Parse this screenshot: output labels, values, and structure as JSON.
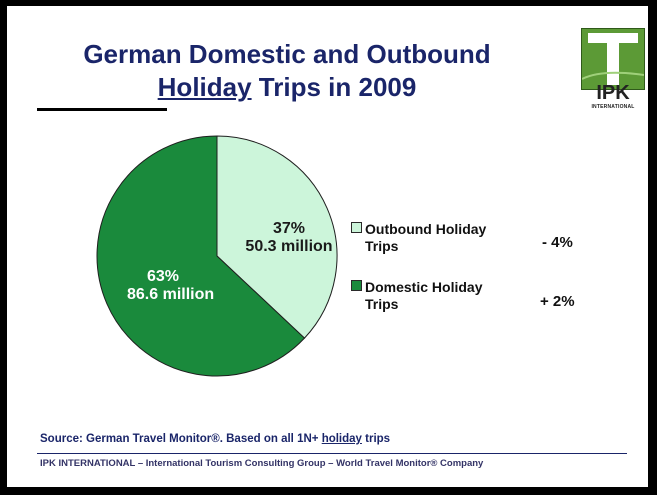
{
  "title": {
    "line1": "German Domestic and Outbound",
    "line2_underlined": "Holiday",
    "line2_rest": " Trips in 2009"
  },
  "logo": {
    "text": "IPK",
    "subtext": "INTERNATIONAL"
  },
  "chart_data": {
    "type": "pie",
    "slices": [
      {
        "name": "Outbound Holiday Trips",
        "percent": 37,
        "value_label": "50.3 million",
        "change": "- 4%",
        "color": "#ccf5da"
      },
      {
        "name": "Domestic Holiday Trips",
        "percent": 63,
        "value_label": "86.6 million",
        "change": "+ 2%",
        "color": "#1a8a3c"
      }
    ],
    "percent_labels": [
      "37%",
      "63%"
    ],
    "legend_placement": "right"
  },
  "legend": [
    {
      "line1": "Outbound Holiday",
      "line2": "Trips",
      "change": "- 4%"
    },
    {
      "line1": "Domestic Holiday",
      "line2": "Trips",
      "change": "+ 2%"
    }
  ],
  "source": {
    "prefix": "Source: German Travel Monitor®.  Based on all 1N+ ",
    "underlined": "holiday",
    "suffix": " trips"
  },
  "footer": "IPK INTERNATIONAL – International Tourism Consulting Group – World Travel Monitor® Company"
}
